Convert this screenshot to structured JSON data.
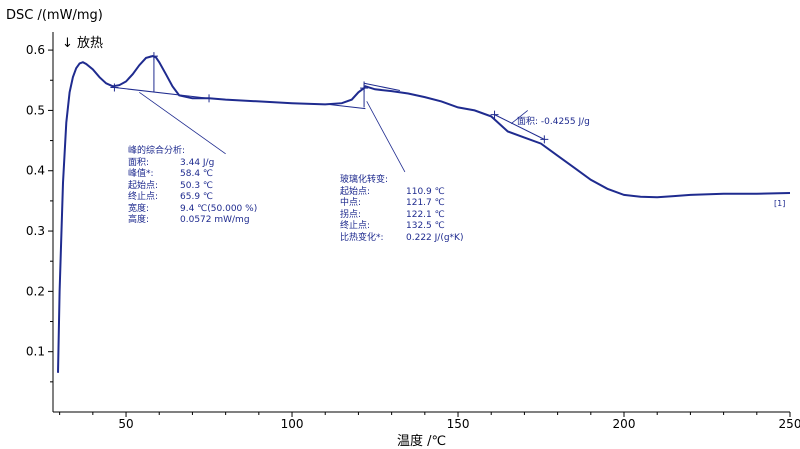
{
  "chart_data": {
    "type": "line",
    "ylabel": "DSC /(mW/mg)",
    "exo_label": "↓ 放热",
    "xlabel": "温度 /℃",
    "xlim": [
      28,
      250
    ],
    "ylim": [
      0.0,
      0.63
    ],
    "x_ticks": [
      50,
      100,
      150,
      200,
      250
    ],
    "y_ticks": [
      0.1,
      0.2,
      0.3,
      0.4,
      0.5,
      0.6
    ],
    "line_color": "#1f2b8f",
    "series": [
      {
        "marker_label": "[1]",
        "x": [
          29.5,
          30,
          31,
          32,
          33,
          34,
          35,
          36,
          37,
          38,
          40,
          42,
          44,
          46,
          48,
          50,
          52,
          54,
          56,
          58,
          59,
          60,
          62,
          64,
          66,
          70,
          75,
          80,
          90,
          100,
          110,
          115,
          118,
          120,
          121.7,
          122.1,
          125,
          130,
          135,
          140,
          145,
          150,
          155,
          160,
          165,
          170,
          175,
          180,
          185,
          190,
          195,
          200,
          205,
          210,
          215,
          220,
          230,
          240,
          250
        ],
        "y": [
          0.065,
          0.2,
          0.38,
          0.48,
          0.53,
          0.555,
          0.57,
          0.578,
          0.58,
          0.577,
          0.568,
          0.555,
          0.545,
          0.54,
          0.542,
          0.548,
          0.56,
          0.575,
          0.587,
          0.59,
          0.588,
          0.58,
          0.56,
          0.54,
          0.525,
          0.52,
          0.52,
          0.518,
          0.515,
          0.512,
          0.51,
          0.512,
          0.518,
          0.53,
          0.537,
          0.54,
          0.535,
          0.532,
          0.528,
          0.522,
          0.515,
          0.505,
          0.5,
          0.49,
          0.465,
          0.455,
          0.445,
          0.425,
          0.405,
          0.385,
          0.37,
          0.36,
          0.357,
          0.356,
          0.358,
          0.36,
          0.362,
          0.362,
          0.363
        ]
      }
    ],
    "peak_analysis": {
      "title": "峰的综合分析:",
      "rows": [
        {
          "label": "面积:",
          "value": "3.44 J/g"
        },
        {
          "label": "峰值*:",
          "value": "58.4 ℃"
        },
        {
          "label": "起始点:",
          "value": "50.3 ℃"
        },
        {
          "label": "终止点:",
          "value": "65.9 ℃"
        },
        {
          "label": "宽度:",
          "value": "9.4 ℃(50.000 %)"
        },
        {
          "label": "高度:",
          "value": "0.0572 mW/mg"
        }
      ],
      "baseline_x": [
        46.5,
        75
      ],
      "baseline_y": [
        0.538,
        0.52
      ]
    },
    "glass_transition": {
      "title": "玻璃化转变:",
      "rows": [
        {
          "label": "起始点:",
          "value": "110.9 ℃"
        },
        {
          "label": "中点:",
          "value": "121.7 ℃"
        },
        {
          "label": "拐点:",
          "value": "122.1 ℃"
        },
        {
          "label": "终止点:",
          "value": "132.5 ℃"
        },
        {
          "label": "比热变化*:",
          "value": "0.222 J/(g*K)"
        }
      ]
    },
    "area_annotation": {
      "text": "面积: -0.4255 J/g",
      "baseline_x": [
        161,
        176
      ],
      "baseline_y": [
        0.493,
        0.452
      ]
    }
  }
}
